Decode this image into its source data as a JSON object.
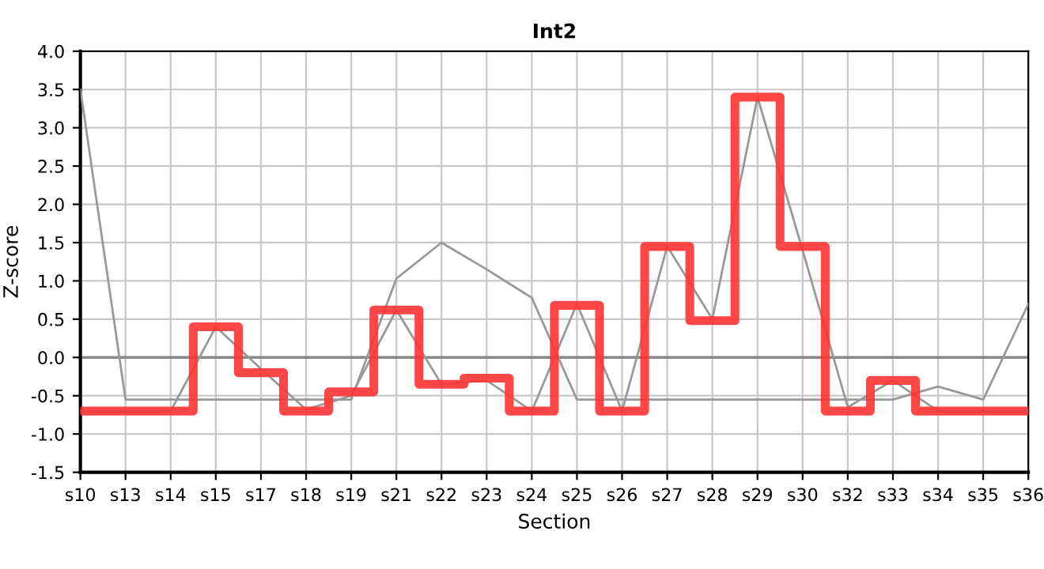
{
  "chart_data": {
    "type": "line",
    "title": "Int2",
    "xlabel": "Section",
    "ylabel": "Z-score",
    "categories": [
      "s10",
      "s13",
      "s14",
      "s15",
      "s17",
      "s18",
      "s19",
      "s21",
      "s22",
      "s23",
      "s24",
      "s25",
      "s26",
      "s27",
      "s28",
      "s29",
      "s30",
      "s32",
      "s33",
      "s34",
      "s35",
      "s36"
    ],
    "series": [
      {
        "color": "#999999",
        "values": [
          3.5,
          -0.55,
          -0.55,
          -0.55,
          -0.55,
          -0.55,
          -0.55,
          1.03,
          1.5,
          1.15,
          0.78,
          -0.55,
          -0.55,
          -0.55,
          -0.55,
          -0.55,
          -0.55,
          -0.55,
          -0.55,
          -0.38,
          -0.55,
          0.7
        ]
      },
      {
        "color": "#999999",
        "values": [
          -0.7,
          -0.7,
          -0.7,
          0.4,
          -0.15,
          -0.68,
          -0.5,
          0.62,
          -0.35,
          -0.3,
          -0.7,
          0.7,
          -0.7,
          1.45,
          0.5,
          3.4,
          1.4,
          -0.65,
          -0.3,
          -0.7,
          -0.7,
          -0.7
        ]
      },
      {
        "type": "step",
        "color": "#ff3333",
        "values": [
          -0.7,
          -0.7,
          -0.7,
          0.4,
          -0.2,
          -0.7,
          -0.45,
          0.62,
          -0.35,
          -0.27,
          -0.7,
          0.68,
          -0.7,
          1.45,
          0.48,
          3.4,
          1.45,
          -0.7,
          -0.3,
          -0.7,
          -0.7,
          -0.7
        ]
      }
    ],
    "ylim": [
      -1.5,
      4.0
    ],
    "yticks": [
      {
        "value": -1.5,
        "label": "-1.5"
      },
      {
        "value": -1.0,
        "label": "-1.0"
      },
      {
        "value": -0.5,
        "label": "-0.5"
      },
      {
        "value": 0.0,
        "label": "0.0"
      },
      {
        "value": 0.5,
        "label": "0.5"
      },
      {
        "value": 1.0,
        "label": "1.0"
      },
      {
        "value": 1.5,
        "label": "1.5"
      },
      {
        "value": 2.0,
        "label": "2.0"
      },
      {
        "value": 2.5,
        "label": "2.5"
      },
      {
        "value": 3.0,
        "label": "3.0"
      },
      {
        "value": 3.5,
        "label": "3.5"
      },
      {
        "value": 4.0,
        "label": "4.0"
      }
    ],
    "ref_lines": [
      {
        "axis": "y",
        "value": 0,
        "color": "#888888"
      }
    ],
    "grid": true
  }
}
